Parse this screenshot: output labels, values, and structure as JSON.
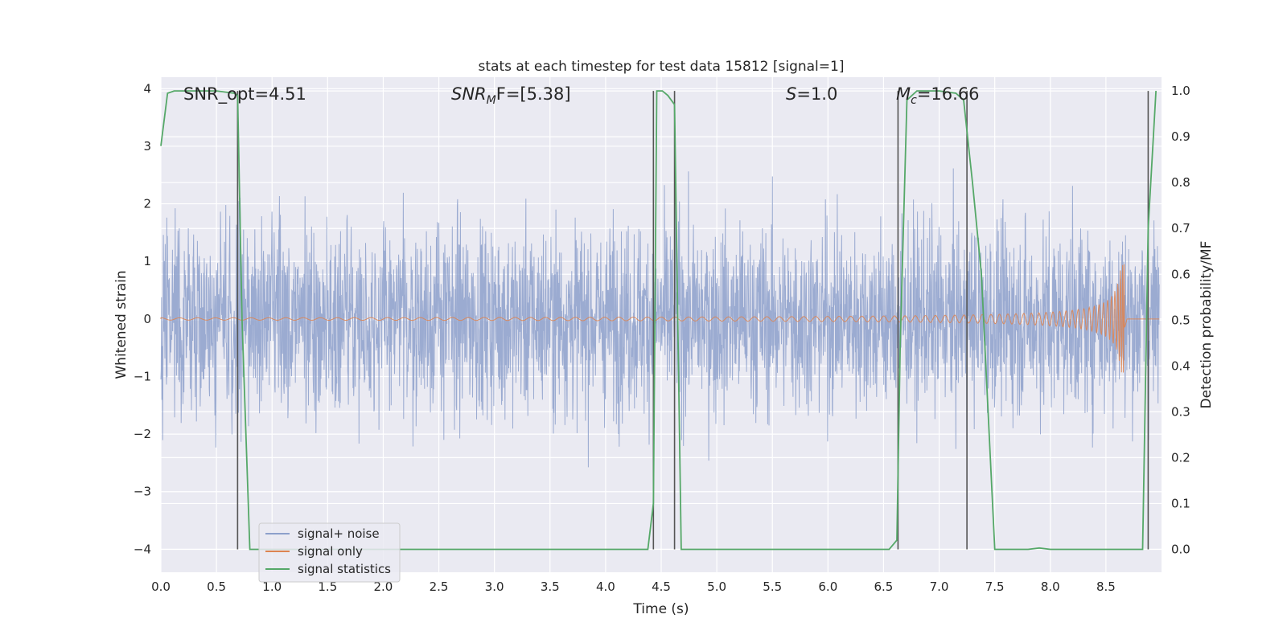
{
  "chart_data": {
    "type": "line",
    "title": "stats at each timestep for test data 15812 [signal=1]",
    "xlabel": "Time (s)",
    "ylabel": "Whitened strain",
    "y2label": "Detection probability/MF",
    "xlim": [
      0.0,
      9.0
    ],
    "ylim": [
      -4.4,
      4.2
    ],
    "y2lim": [
      -0.05,
      1.03
    ],
    "xticks": [
      "0.0",
      "0.5",
      "1.0",
      "1.5",
      "2.0",
      "2.5",
      "3.0",
      "3.5",
      "4.0",
      "4.5",
      "5.0",
      "5.5",
      "6.0",
      "6.5",
      "7.0",
      "7.5",
      "8.0",
      "8.5"
    ],
    "yticks": [
      "4",
      "3",
      "2",
      "1",
      "0",
      "−1",
      "−2",
      "−3",
      "−4"
    ],
    "y2ticks": [
      "1.0",
      "0.9",
      "0.8",
      "0.7",
      "0.6",
      "0.5",
      "0.4",
      "0.3",
      "0.2",
      "0.1",
      "0.0"
    ],
    "annotations": [
      {
        "pre": "SNR_opt=4.51",
        "sym": "",
        "sub": "",
        "post": ""
      },
      {
        "pre": "",
        "sym": "SNR",
        "sub": "M",
        "post": "F=[5.38]"
      },
      {
        "pre": "",
        "sym": "S",
        "sub": "",
        "post": "=1.0"
      },
      {
        "pre": "",
        "sym": "M",
        "sub": "c",
        "post": "=16.66"
      }
    ],
    "legend": {
      "placement": "lower-left",
      "entries": [
        "signal+ noise",
        "signal only",
        "signal statistics"
      ]
    },
    "grid": true,
    "colors": {
      "noise": "#8da0cb",
      "signal": "#dd8452",
      "stat": "#55a868",
      "marker": "#555555",
      "panel": "#eaeaf2"
    },
    "vlines": [
      0.69,
      4.43,
      4.62,
      6.63,
      7.25,
      8.88
    ],
    "series": [
      {
        "name": "signal statistics",
        "x": [
          0.0,
          0.06,
          0.12,
          0.3,
          0.5,
          0.66,
          0.69,
          0.73,
          0.8,
          0.85,
          1.2,
          2.0,
          3.0,
          4.0,
          4.38,
          4.43,
          4.46,
          4.51,
          4.56,
          4.62,
          4.68,
          4.75,
          5.5,
          6.55,
          6.62,
          6.65,
          6.71,
          6.8,
          7.0,
          7.15,
          7.22,
          7.3,
          7.38,
          7.5,
          7.6,
          7.8,
          7.9,
          8.0,
          8.5,
          8.83,
          8.88,
          8.95
        ],
        "values": [
          0.88,
          0.995,
          1.0,
          1.0,
          1.0,
          0.995,
          0.99,
          0.5,
          0.0,
          0.0,
          0.0,
          0.0,
          0.0,
          0.0,
          0.0,
          0.1,
          1.0,
          1.0,
          0.99,
          0.97,
          0.0,
          0.0,
          0.0,
          0.0,
          0.02,
          0.45,
          0.98,
          1.0,
          1.0,
          0.995,
          0.98,
          0.8,
          0.6,
          0.0,
          0.0,
          0.0,
          0.003,
          0.0,
          0.0,
          0.0,
          0.7,
          1.0
        ]
      }
    ]
  }
}
